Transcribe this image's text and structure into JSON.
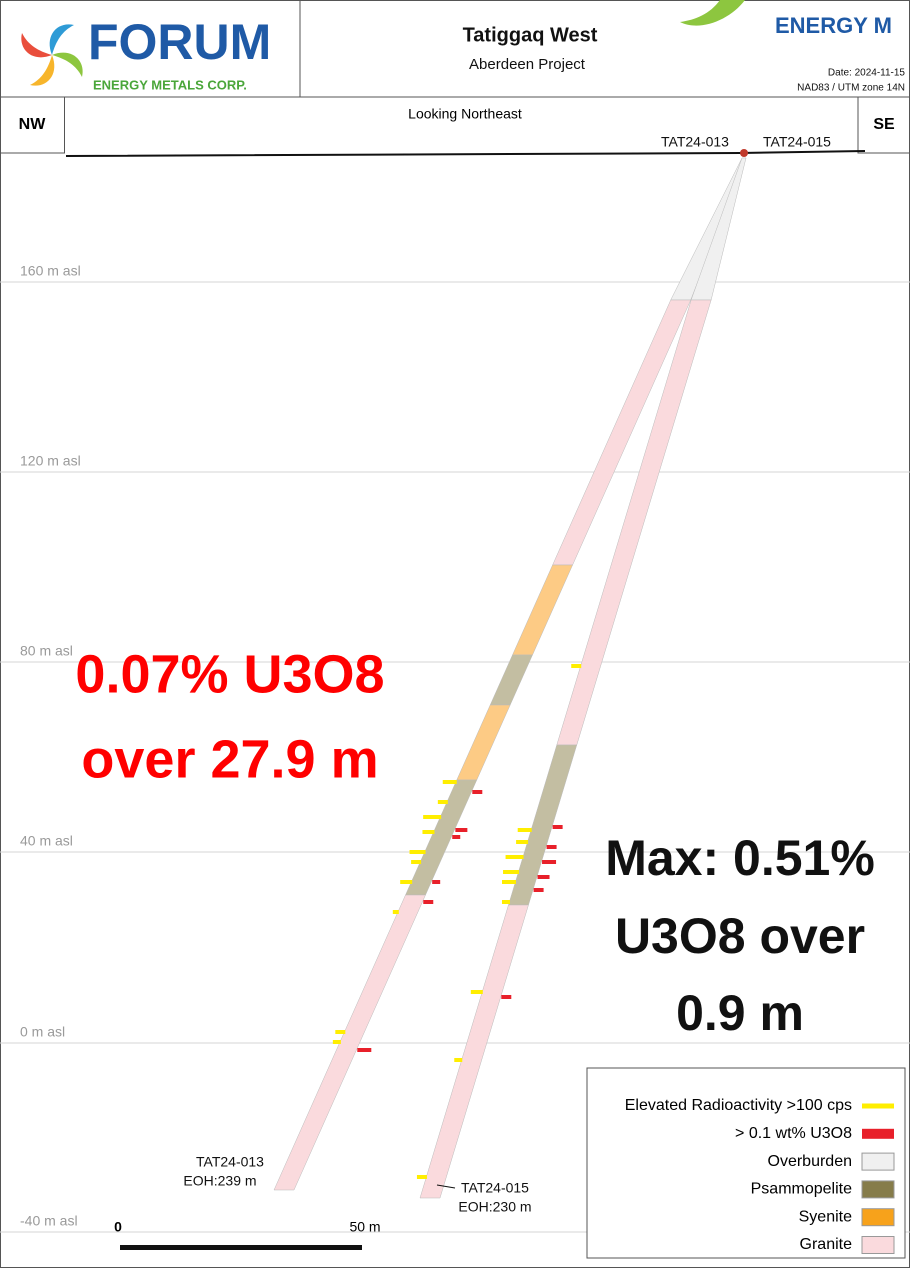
{
  "header": {
    "logo": {
      "name": "FORUM",
      "tagline": "ENERGY METALS CORP."
    },
    "title": "Tatiggaq West",
    "subtitle": "Aberdeen Project",
    "right_logo": "ENERGY M",
    "date": "Date: 2024-11-15",
    "projection": "NAD83 / UTM zone 14N"
  },
  "section": {
    "left": "NW",
    "right": "SE",
    "view": "Looking Northeast",
    "elevations": [
      "160  m asl",
      "120  m asl",
      "80 m asl",
      "40  m asl",
      "0  m asl",
      "-40  m asl"
    ],
    "scale": {
      "start": "0",
      "end": "50 m"
    }
  },
  "holes": [
    {
      "name": "TAT24-013",
      "eoh": "EOH:239 m"
    },
    {
      "name": "TAT24-015",
      "eoh": "EOH:230 m"
    }
  ],
  "annotations": [
    {
      "lines": [
        "0.07% U3O8",
        "over 27.9 m"
      ]
    },
    {
      "lines": [
        "Max: 0.51%",
        "U3O8 over",
        "0.9 m"
      ]
    }
  ],
  "legend": [
    "Elevated Radioactivity >100 cps",
    "> 0.1 wt% U3O8",
    "Overburden",
    "Psammopelite",
    "Syenite",
    "Granite"
  ]
}
